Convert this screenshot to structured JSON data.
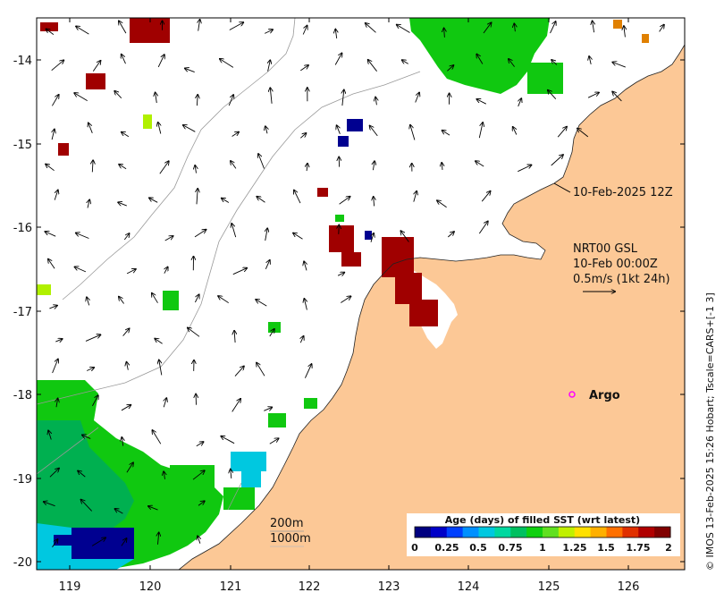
{
  "map": {
    "lon_ticks": [
      "119",
      "120",
      "121",
      "122",
      "123",
      "124",
      "125",
      "126"
    ],
    "lat_ticks": [
      "-14",
      "-15",
      "-16",
      "-17",
      "-18",
      "-19",
      "-20"
    ],
    "timestamp_label": "10-Feb-2025 12Z",
    "product": {
      "line1": "NRT00 GSL",
      "line2": "10-Feb 00:00Z",
      "line3": "0.5m/s (1kt 24h)"
    },
    "argo_label": "Argo",
    "isobath_200": "200m",
    "isobath_1000": "1000m",
    "colorbar": {
      "title": "Age (days) of filled SST (wrt latest)",
      "ticks": [
        "0",
        "0.25",
        "0.5",
        "0.75",
        "1",
        "1.25",
        "1.5",
        "1.75",
        "2"
      ],
      "colors": [
        "#000080",
        "#0000c8",
        "#0040ff",
        "#0090ff",
        "#00c8e0",
        "#00d8a0",
        "#00c060",
        "#10d010",
        "#60e020",
        "#c0f000",
        "#ffe000",
        "#ffb000",
        "#ff7000",
        "#e03000",
        "#b00000",
        "#800000"
      ]
    },
    "credit": "© IMOS 13-Feb-2025 15:26 Hobart; Tscale=CARS+[-1 3]",
    "colors": {
      "land": "#fcc896",
      "ocean": "#ffffff",
      "old_sst": "#a00000",
      "green_sst": "#10c810",
      "argo": "#ff00ff"
    }
  }
}
